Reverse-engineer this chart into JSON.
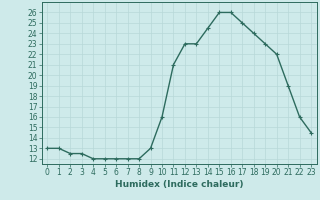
{
  "x": [
    0,
    1,
    2,
    3,
    4,
    5,
    6,
    7,
    8,
    9,
    10,
    11,
    12,
    13,
    14,
    15,
    16,
    17,
    18,
    19,
    20,
    21,
    22,
    23
  ],
  "y": [
    13.0,
    13.0,
    12.5,
    12.5,
    12.0,
    12.0,
    12.0,
    12.0,
    12.0,
    13.0,
    16.0,
    21.0,
    23.0,
    23.0,
    24.5,
    26.0,
    26.0,
    25.0,
    24.0,
    23.0,
    22.0,
    19.0,
    16.0,
    14.5
  ],
  "line_color": "#2d6b5e",
  "marker": "+",
  "marker_size": 3,
  "xlabel": "Humidex (Indice chaleur)",
  "ylabel": "",
  "title": "",
  "xlim": [
    -0.5,
    23.5
  ],
  "ylim": [
    11.5,
    27.0
  ],
  "yticks": [
    12,
    13,
    14,
    15,
    16,
    17,
    18,
    19,
    20,
    21,
    22,
    23,
    24,
    25,
    26
  ],
  "xticks": [
    0,
    1,
    2,
    3,
    4,
    5,
    6,
    7,
    8,
    9,
    10,
    11,
    12,
    13,
    14,
    15,
    16,
    17,
    18,
    19,
    20,
    21,
    22,
    23
  ],
  "bg_color": "#ceeaea",
  "grid_color": "#b8d8d8",
  "tick_label_size": 5.5,
  "xlabel_size": 6.5,
  "line_width": 1.0
}
